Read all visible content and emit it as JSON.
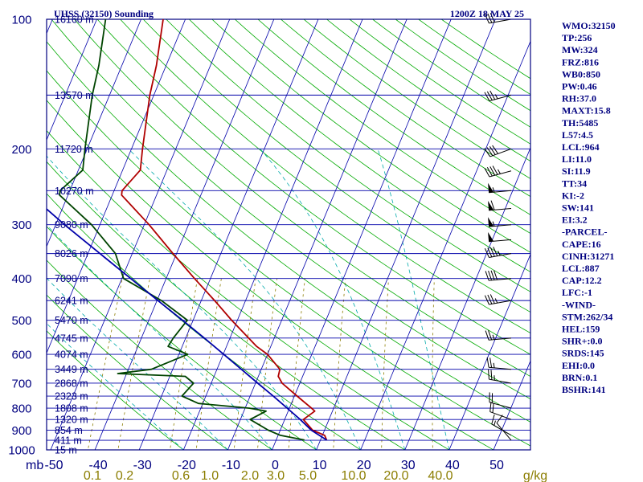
{
  "header": {
    "title": "UHSS (32150) Sounding",
    "time": "1200Z 18 MAY 25"
  },
  "indices": [
    "WMO:32150",
    "TP:256",
    "MW:324",
    "FRZ:816",
    "WB0:850",
    "PW:0.46",
    "RH:37.0",
    "MAXT:15.8",
    "TH:5485",
    "L57:4.5",
    "LCL:964",
    "LI:11.0",
    "SI:11.9",
    "TT:34",
    "KI:-2",
    "SW:141",
    "EI:3.2",
    "-PARCEL-",
    "CAPE:16",
    "CINH:31271",
    "LCL:887",
    "CAP:12.2",
    "LFC:-1",
    "-WIND-",
    "STM:262/34",
    "HEL:159",
    "SHR+:0.0",
    "SRDS:145",
    "EHI:0.0",
    "BRN:0.1",
    "BSHR:141"
  ],
  "colors": {
    "isobar": "#0000aa",
    "skewed_isotherm": "#0000aa",
    "dry_adiabat": "#00aa00",
    "moist_adiabat": "#00aaaa",
    "mixing_ratio": "#8b7d00",
    "temperature": "#b00000",
    "dewpoint": "#004400",
    "parcel": "#0000aa",
    "text": "#000080"
  },
  "chart_data": {
    "type": "line",
    "plot": "skew-T log-P",
    "y_scale": "log",
    "ylim": [
      1000,
      100
    ],
    "xlim": [
      -50,
      60
    ],
    "x_unit_label": "mb",
    "pressure_ticks": [
      100,
      200,
      300,
      400,
      500,
      600,
      700,
      800,
      900,
      1000
    ],
    "pressure_tick_labels": [
      "100",
      "200",
      "300",
      "400",
      "500",
      "600",
      "700",
      "800",
      "900",
      "1000"
    ],
    "temperature_ticks": [
      -50,
      -40,
      -30,
      -20,
      -10,
      0,
      10,
      20,
      30,
      40,
      50
    ],
    "temperature_tick_labels": [
      "-50",
      "-40",
      "-30",
      "-20",
      "-10",
      "0",
      "10",
      "20",
      "30",
      "40",
      "50"
    ],
    "mixing_ratio_labels": [
      "0.1",
      "0.2",
      "0.6",
      "1.0",
      "2.0",
      "3.0",
      "5.0",
      "10.0",
      "20.0",
      "40.0",
      "g/kg"
    ],
    "mixing_ratio_values": [
      0.1,
      0.2,
      0.6,
      1.0,
      2.0,
      3.0,
      5.0,
      10.0,
      20.0,
      40.0
    ],
    "height_levels": [
      {
        "p": 100,
        "label": "16160 m"
      },
      {
        "p": 150,
        "label": "13570 m"
      },
      {
        "p": 200,
        "label": "11720 m"
      },
      {
        "p": 250,
        "label": "10270 m"
      },
      {
        "p": 300,
        "label": "9080 m"
      },
      {
        "p": 350,
        "label": "8026 m"
      },
      {
        "p": 400,
        "label": "7090 m"
      },
      {
        "p": 450,
        "label": "6241 m"
      },
      {
        "p": 500,
        "label": "5470 m"
      },
      {
        "p": 550,
        "label": "4745 m"
      },
      {
        "p": 600,
        "label": "4074 m"
      },
      {
        "p": 650,
        "label": "3449 m"
      },
      {
        "p": 700,
        "label": "2868 m"
      },
      {
        "p": 750,
        "label": "2323 m"
      },
      {
        "p": 800,
        "label": "1808 m"
      },
      {
        "p": 850,
        "label": "1320 m"
      },
      {
        "p": 900,
        "label": "854 m"
      },
      {
        "p": 950,
        "label": "411 m"
      },
      {
        "p": 1000,
        "label": "15 m"
      }
    ],
    "series": [
      {
        "kind": "temperature",
        "points": [
          [
            949,
            11.4
          ],
          [
            925,
            10.5
          ],
          [
            900,
            7.3
          ],
          [
            850,
            4.2
          ],
          [
            813,
            6.0
          ],
          [
            800,
            5.0
          ],
          [
            750,
            0.6
          ],
          [
            700,
            -4.0
          ],
          [
            675,
            -5.5
          ],
          [
            650,
            -5.8
          ],
          [
            600,
            -10.0
          ],
          [
            575,
            -13.2
          ],
          [
            550,
            -15.8
          ],
          [
            500,
            -21.3
          ],
          [
            450,
            -27.0
          ],
          [
            400,
            -33.6
          ],
          [
            350,
            -40.8
          ],
          [
            300,
            -48.9
          ],
          [
            256,
            -57.9
          ],
          [
            250,
            -58.2
          ],
          [
            224,
            -56.0
          ],
          [
            200,
            -57.5
          ],
          [
            150,
            -60.9
          ],
          [
            128,
            -62.2
          ],
          [
            100,
            -65.0
          ]
        ]
      },
      {
        "kind": "dewpoint",
        "points": [
          [
            949,
            6.4
          ],
          [
            925,
            0.5
          ],
          [
            900,
            -2.7
          ],
          [
            850,
            -7.8
          ],
          [
            813,
            -5.0
          ],
          [
            800,
            -9.0
          ],
          [
            780,
            -21.0
          ],
          [
            750,
            -25.4
          ],
          [
            700,
            -24.0
          ],
          [
            675,
            -26.5
          ],
          [
            665,
            -42.0
          ],
          [
            650,
            -34.8
          ],
          [
            600,
            -28.0
          ],
          [
            575,
            -33.2
          ],
          [
            550,
            -32.8
          ],
          [
            500,
            -31.3
          ],
          [
            450,
            -39.0
          ],
          [
            400,
            -49.6
          ],
          [
            350,
            -53.8
          ],
          [
            300,
            -61.9
          ],
          [
            256,
            -71.9
          ],
          [
            250,
            -72.2
          ],
          [
            224,
            -69.0
          ],
          [
            200,
            -70.5
          ],
          [
            150,
            -73.9
          ],
          [
            128,
            -75.2
          ],
          [
            100,
            -78.0
          ]
        ]
      },
      {
        "kind": "parcel",
        "points": [
          [
            949,
            11.4
          ],
          [
            900,
            7.0
          ],
          [
            850,
            3.5
          ],
          [
            800,
            -0.5
          ],
          [
            750,
            -4.8
          ],
          [
            700,
            -9.5
          ],
          [
            650,
            -14.5
          ],
          [
            600,
            -19.9
          ],
          [
            550,
            -25.8
          ],
          [
            500,
            -32.4
          ],
          [
            450,
            -39.8
          ],
          [
            400,
            -48.0
          ],
          [
            350,
            -57.3
          ],
          [
            300,
            -68.0
          ],
          [
            250,
            -80.0
          ],
          [
            200,
            -94.0
          ],
          [
            170,
            -103.0
          ]
        ]
      }
    ],
    "wind_barbs": [
      {
        "p": 100,
        "dir": 260,
        "spd": 30
      },
      {
        "p": 150,
        "dir": 255,
        "spd": 35
      },
      {
        "p": 200,
        "dir": 250,
        "spd": 40
      },
      {
        "p": 225,
        "dir": 255,
        "spd": 45
      },
      {
        "p": 250,
        "dir": 265,
        "spd": 55
      },
      {
        "p": 275,
        "dir": 265,
        "spd": 60
      },
      {
        "p": 300,
        "dir": 265,
        "spd": 55
      },
      {
        "p": 325,
        "dir": 265,
        "spd": 50
      },
      {
        "p": 350,
        "dir": 260,
        "spd": 45
      },
      {
        "p": 400,
        "dir": 265,
        "spd": 40
      },
      {
        "p": 450,
        "dir": 260,
        "spd": 35
      },
      {
        "p": 550,
        "dir": 265,
        "spd": 25
      },
      {
        "p": 650,
        "dir": 275,
        "spd": 25
      },
      {
        "p": 700,
        "dir": 280,
        "spd": 25
      },
      {
        "p": 800,
        "dir": 285,
        "spd": 20
      },
      {
        "p": 850,
        "dir": 290,
        "spd": 20
      },
      {
        "p": 925,
        "dir": 300,
        "spd": 15
      },
      {
        "p": 950,
        "dir": 320,
        "spd": 10
      }
    ]
  }
}
